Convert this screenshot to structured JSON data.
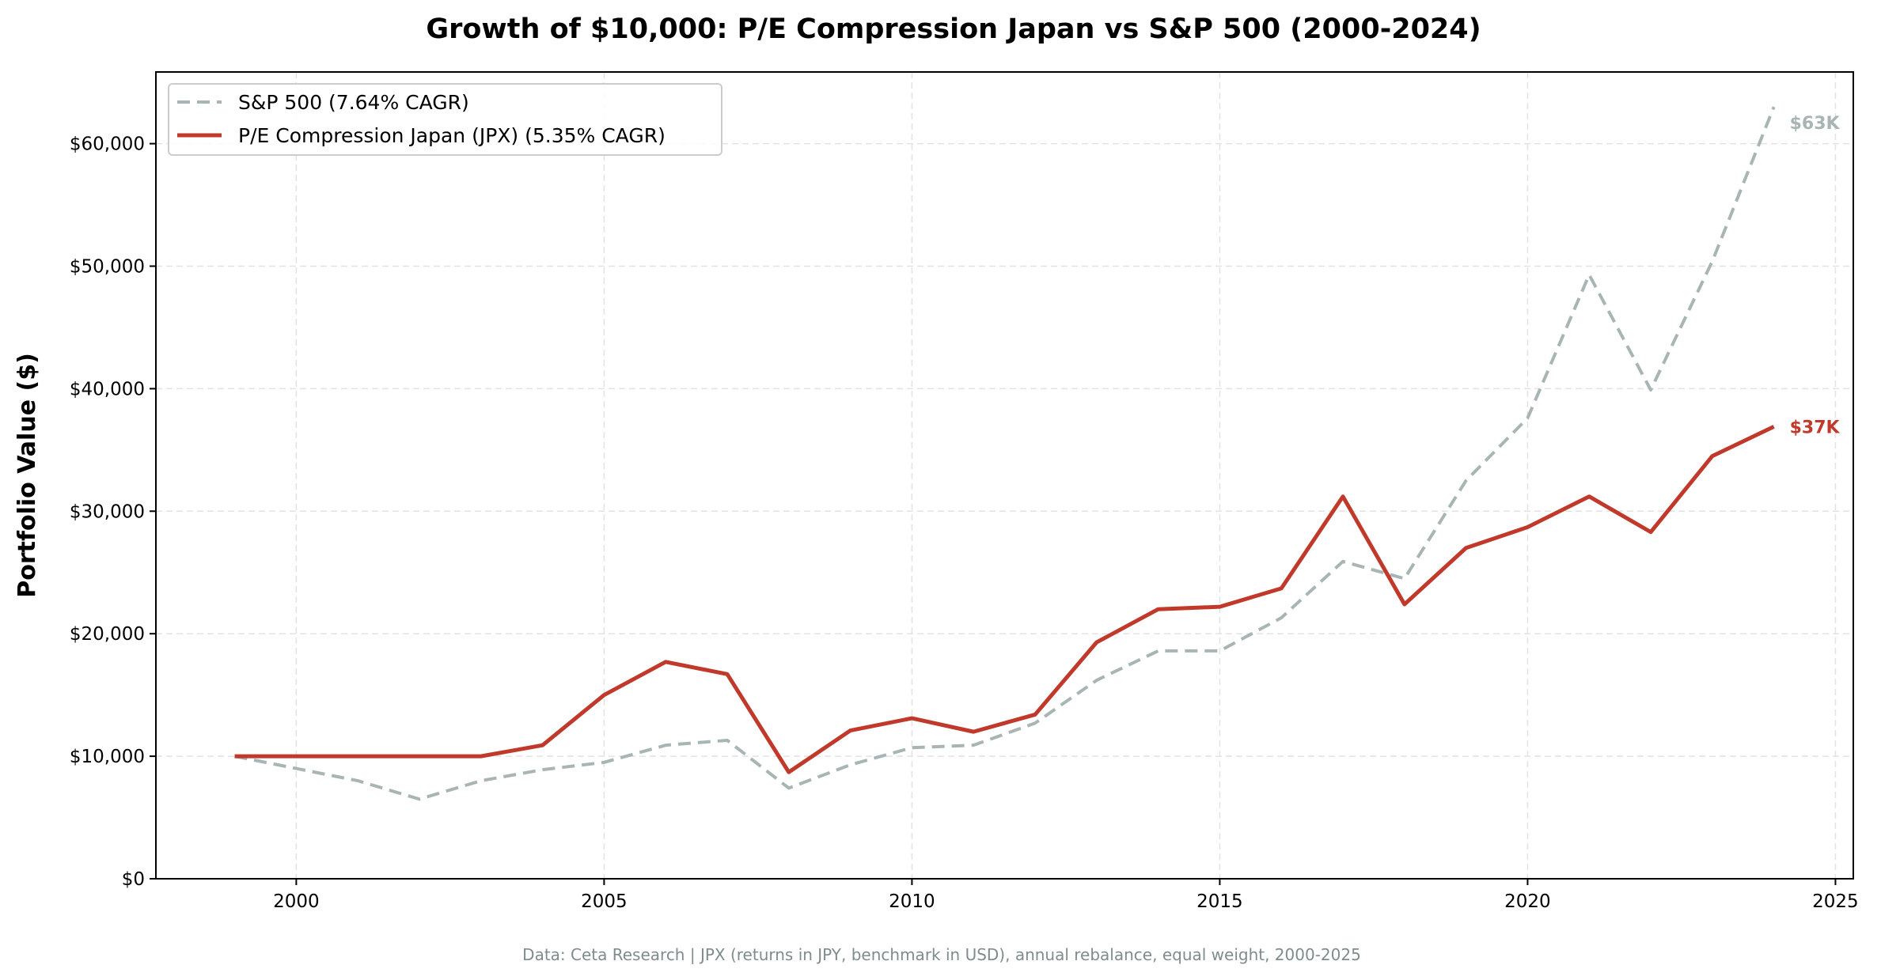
{
  "chart_data": {
    "type": "line",
    "title": "Growth of $10,000: P/E Compression Japan vs S&P 500 (2000-2024)",
    "xlabel": "",
    "ylabel": "Portfolio Value ($)",
    "footer": "Data: Ceta Research | JPX (returns in JPY, benchmark in USD), annual rebalance, equal weight, 2000-2025",
    "xlim": [
      1997.72,
      2025.29
    ],
    "ylim": [
      0,
      65850
    ],
    "x_ticks": [
      2000,
      2005,
      2010,
      2015,
      2020,
      2025
    ],
    "x_tick_labels": [
      "2000",
      "2005",
      "2010",
      "2015",
      "2020",
      "2025"
    ],
    "y_ticks": [
      0,
      10000,
      20000,
      30000,
      40000,
      50000,
      60000
    ],
    "y_tick_labels": [
      "$0",
      "$10,000",
      "$20,000",
      "$30,000",
      "$40,000",
      "$50,000",
      "$60,000"
    ],
    "grid": true,
    "legend_position": "top-left",
    "x": [
      1999,
      2000,
      2001,
      2002,
      2003,
      2004,
      2005,
      2006,
      2007,
      2008,
      2009,
      2010,
      2011,
      2012,
      2013,
      2014,
      2015,
      2016,
      2017,
      2018,
      2019,
      2020,
      2021,
      2022,
      2023,
      2024
    ],
    "series": [
      {
        "name": "S&P 500 (7.64% CAGR)",
        "color": "#a8b5b4",
        "style": "dashed",
        "end_label": "$63K",
        "values": [
          10000,
          9000,
          8000,
          6500,
          8000,
          8900,
          9500,
          10900,
          11300,
          7400,
          9300,
          10700,
          10900,
          12700,
          16200,
          18600,
          18600,
          21300,
          25900,
          24500,
          32500,
          37600,
          49300,
          39900,
          50400,
          63000
        ]
      },
      {
        "name": "P/E Compression Japan (JPX) (5.35% CAGR)",
        "color": "#c0392b",
        "style": "solid",
        "end_label": "$37K",
        "values": [
          10000,
          10000,
          10000,
          10000,
          10000,
          10900,
          15000,
          17700,
          16700,
          8700,
          12100,
          13100,
          12000,
          13400,
          19300,
          22000,
          22200,
          23700,
          31200,
          22400,
          27000,
          28700,
          31200,
          28300,
          34500,
          36900
        ]
      }
    ]
  }
}
